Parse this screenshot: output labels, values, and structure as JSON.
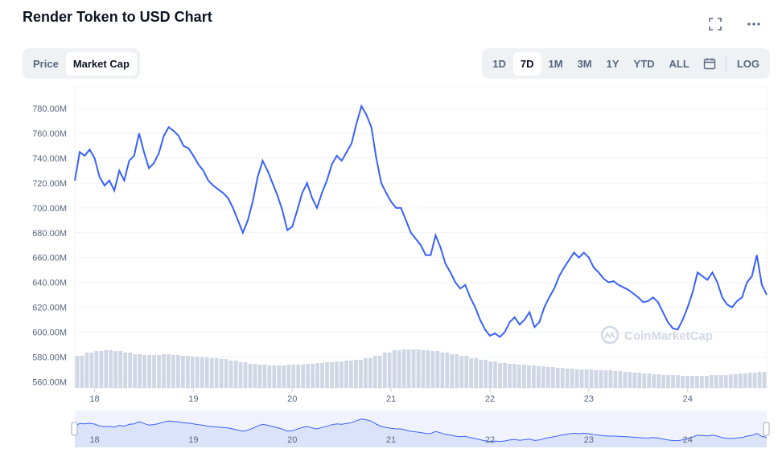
{
  "header": {
    "title": "Render Token to USD Chart"
  },
  "toggle": {
    "options": [
      "Price",
      "Market Cap"
    ],
    "active": "Market Cap"
  },
  "ranges": {
    "options": [
      "1D",
      "7D",
      "1M",
      "3M",
      "1Y",
      "YTD",
      "ALL"
    ],
    "active": "7D",
    "log_label": "LOG"
  },
  "icons": {
    "fullscreen": "fullscreen-icon",
    "more": "more-icon",
    "calendar": "calendar-icon"
  },
  "watermark": "CoinMarketCap",
  "colors": {
    "line": "#3861fb",
    "volume": "#cfd6e4",
    "grid": "#eff2f5",
    "navigator_fill": "#e6ebfc"
  },
  "chart_data": {
    "type": "line",
    "series_label": "Market Cap",
    "ylim": [
      555000000,
      795000000
    ],
    "y_ticks": [
      "780.00M",
      "760.00M",
      "740.00M",
      "720.00M",
      "700.00M",
      "680.00M",
      "660.00M",
      "640.00M",
      "620.00M",
      "600.00M",
      "580.00M",
      "560.00M"
    ],
    "x_ticks": [
      "18",
      "19",
      "20",
      "21",
      "22",
      "23",
      "24"
    ],
    "x_tick_values": [
      18,
      19,
      20,
      21,
      22,
      23,
      24
    ],
    "xlim": [
      17.8,
      24.8
    ],
    "points": [
      [
        17.8,
        722
      ],
      [
        17.85,
        745
      ],
      [
        17.9,
        742
      ],
      [
        17.95,
        747
      ],
      [
        18.0,
        740
      ],
      [
        18.05,
        725
      ],
      [
        18.1,
        718
      ],
      [
        18.15,
        722
      ],
      [
        18.2,
        714
      ],
      [
        18.25,
        730
      ],
      [
        18.3,
        722
      ],
      [
        18.35,
        738
      ],
      [
        18.4,
        742
      ],
      [
        18.45,
        760
      ],
      [
        18.5,
        745
      ],
      [
        18.55,
        732
      ],
      [
        18.6,
        736
      ],
      [
        18.65,
        744
      ],
      [
        18.7,
        758
      ],
      [
        18.75,
        765
      ],
      [
        18.8,
        762
      ],
      [
        18.85,
        758
      ],
      [
        18.9,
        750
      ],
      [
        18.95,
        748
      ],
      [
        19.0,
        742
      ],
      [
        19.05,
        735
      ],
      [
        19.1,
        730
      ],
      [
        19.15,
        722
      ],
      [
        19.2,
        718
      ],
      [
        19.25,
        715
      ],
      [
        19.3,
        712
      ],
      [
        19.35,
        708
      ],
      [
        19.4,
        700
      ],
      [
        19.45,
        690
      ],
      [
        19.5,
        680
      ],
      [
        19.55,
        690
      ],
      [
        19.6,
        705
      ],
      [
        19.65,
        725
      ],
      [
        19.7,
        738
      ],
      [
        19.75,
        730
      ],
      [
        19.8,
        720
      ],
      [
        19.85,
        710
      ],
      [
        19.9,
        698
      ],
      [
        19.95,
        682
      ],
      [
        20.0,
        685
      ],
      [
        20.05,
        698
      ],
      [
        20.1,
        712
      ],
      [
        20.15,
        720
      ],
      [
        20.2,
        708
      ],
      [
        20.25,
        700
      ],
      [
        20.3,
        712
      ],
      [
        20.35,
        722
      ],
      [
        20.4,
        735
      ],
      [
        20.45,
        742
      ],
      [
        20.5,
        738
      ],
      [
        20.55,
        745
      ],
      [
        20.6,
        752
      ],
      [
        20.65,
        768
      ],
      [
        20.7,
        782
      ],
      [
        20.75,
        775
      ],
      [
        20.8,
        765
      ],
      [
        20.85,
        740
      ],
      [
        20.9,
        720
      ],
      [
        20.95,
        712
      ],
      [
        21.0,
        705
      ],
      [
        21.05,
        700
      ],
      [
        21.1,
        700
      ],
      [
        21.15,
        690
      ],
      [
        21.2,
        680
      ],
      [
        21.25,
        675
      ],
      [
        21.3,
        670
      ],
      [
        21.35,
        662
      ],
      [
        21.4,
        662
      ],
      [
        21.45,
        678
      ],
      [
        21.5,
        668
      ],
      [
        21.55,
        655
      ],
      [
        21.6,
        648
      ],
      [
        21.65,
        640
      ],
      [
        21.7,
        635
      ],
      [
        21.75,
        638
      ],
      [
        21.8,
        628
      ],
      [
        21.85,
        620
      ],
      [
        21.9,
        610
      ],
      [
        21.95,
        602
      ],
      [
        22.0,
        597
      ],
      [
        22.05,
        599
      ],
      [
        22.1,
        596
      ],
      [
        22.15,
        600
      ],
      [
        22.2,
        608
      ],
      [
        22.25,
        612
      ],
      [
        22.3,
        606
      ],
      [
        22.35,
        610
      ],
      [
        22.4,
        616
      ],
      [
        22.45,
        604
      ],
      [
        22.5,
        608
      ],
      [
        22.55,
        620
      ],
      [
        22.6,
        628
      ],
      [
        22.65,
        635
      ],
      [
        22.7,
        645
      ],
      [
        22.75,
        652
      ],
      [
        22.8,
        658
      ],
      [
        22.85,
        664
      ],
      [
        22.9,
        660
      ],
      [
        22.95,
        664
      ],
      [
        23.0,
        660
      ],
      [
        23.05,
        652
      ],
      [
        23.1,
        648
      ],
      [
        23.15,
        643
      ],
      [
        23.2,
        640
      ],
      [
        23.25,
        641
      ],
      [
        23.3,
        638
      ],
      [
        23.35,
        636
      ],
      [
        23.4,
        634
      ],
      [
        23.45,
        631
      ],
      [
        23.5,
        628
      ],
      [
        23.55,
        624
      ],
      [
        23.6,
        625
      ],
      [
        23.65,
        628
      ],
      [
        23.7,
        624
      ],
      [
        23.75,
        616
      ],
      [
        23.8,
        608
      ],
      [
        23.85,
        603
      ],
      [
        23.9,
        602
      ],
      [
        23.95,
        610
      ],
      [
        24.0,
        620
      ],
      [
        24.05,
        632
      ],
      [
        24.1,
        648
      ],
      [
        24.15,
        645
      ],
      [
        24.2,
        642
      ],
      [
        24.25,
        648
      ],
      [
        24.3,
        640
      ],
      [
        24.35,
        628
      ],
      [
        24.4,
        622
      ],
      [
        24.45,
        620
      ],
      [
        24.5,
        625
      ],
      [
        24.55,
        628
      ],
      [
        24.6,
        640
      ],
      [
        24.65,
        645
      ],
      [
        24.7,
        662
      ],
      [
        24.75,
        638
      ],
      [
        24.8,
        630
      ]
    ],
    "volume": [
      40,
      44,
      46,
      47,
      46,
      44,
      42,
      41,
      41,
      42,
      41,
      40,
      39,
      38,
      37,
      36,
      34,
      32,
      30,
      29,
      28,
      28,
      29,
      29,
      30,
      31,
      32,
      33,
      34,
      35,
      37,
      40,
      44,
      47,
      48,
      48,
      47,
      46,
      44,
      42,
      40,
      37,
      35,
      33,
      31,
      30,
      29,
      28,
      27,
      26,
      25,
      24,
      23,
      23,
      22,
      22,
      21,
      20,
      19,
      18,
      17,
      16,
      16,
      15,
      15,
      15,
      16,
      16,
      17,
      18,
      19,
      20
    ]
  }
}
